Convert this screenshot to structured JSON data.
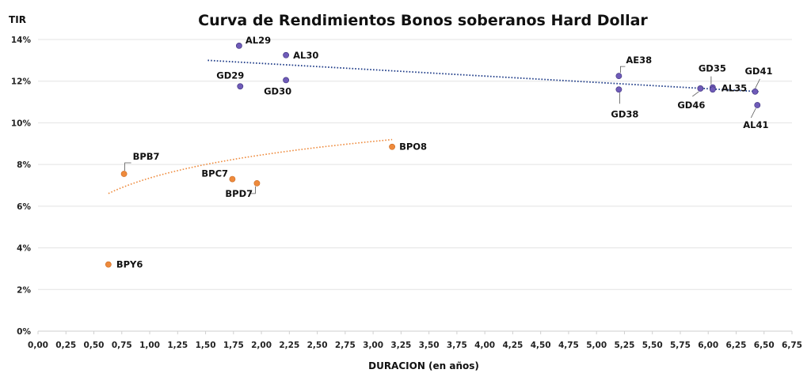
{
  "chart_data": {
    "type": "scatter",
    "title": "Curva de Rendimientos Bonos soberanos Hard Dollar",
    "xlabel": "DURACION (en años)",
    "ylabel": "TIR",
    "xlim": [
      0,
      6.75
    ],
    "ylim": [
      0,
      14
    ],
    "x_ticks": [
      "0,00",
      "0,25",
      "0,50",
      "0,75",
      "1,00",
      "1,25",
      "1,50",
      "1,75",
      "2,00",
      "2,25",
      "2,50",
      "2,75",
      "3,00",
      "3,25",
      "3,50",
      "3,75",
      "4,00",
      "4,25",
      "4,50",
      "4,75",
      "5,00",
      "5,25",
      "5,50",
      "5,75",
      "6,00",
      "6,25",
      "6,50",
      "6,75"
    ],
    "y_ticks": [
      "0%",
      "2%",
      "4%",
      "6%",
      "8%",
      "10%",
      "12%",
      "14%"
    ],
    "grid": "horizontal",
    "colors": {
      "soberanos": "#6f5bb8",
      "bopreal": "#ee8a3c",
      "trend_soberanos": "#1f3c88",
      "trend_bopreal": "#ee8a3c"
    },
    "series": [
      {
        "points": [
          {
            "label": "AL29",
            "x": 1.8,
            "y": 13.7
          },
          {
            "label": "AL30",
            "x": 2.22,
            "y": 13.25
          },
          {
            "label": "GD29",
            "x": 1.81,
            "y": 11.75
          },
          {
            "label": "GD30",
            "x": 2.22,
            "y": 12.05
          },
          {
            "label": "AE38",
            "x": 5.2,
            "y": 12.25
          },
          {
            "label": "GD38",
            "x": 5.2,
            "y": 11.6
          },
          {
            "label": "GD46",
            "x": 5.93,
            "y": 11.65
          },
          {
            "label": "GD35",
            "x": 6.04,
            "y": 11.7
          },
          {
            "label": "AL35",
            "x": 6.04,
            "y": 11.6
          },
          {
            "label": "GD41",
            "x": 6.42,
            "y": 11.5
          },
          {
            "label": "AL41",
            "x": 6.44,
            "y": 10.85
          }
        ]
      },
      {
        "points": [
          {
            "label": "BPB7",
            "x": 0.77,
            "y": 7.55
          },
          {
            "label": "BPC7",
            "x": 1.74,
            "y": 7.3
          },
          {
            "label": "BPD7",
            "x": 1.96,
            "y": 7.1
          },
          {
            "label": "BPO8",
            "x": 3.17,
            "y": 8.85
          },
          {
            "label": "BPY6",
            "x": 0.63,
            "y": 3.2
          }
        ]
      }
    ],
    "trendlines": [
      {
        "kind": "linear",
        "from": [
          1.52,
          13.0
        ],
        "to": [
          6.45,
          11.5
        ]
      },
      {
        "kind": "logarithmic",
        "x_range": [
          0.63,
          3.17
        ],
        "a": 7.35,
        "b": 1.6
      }
    ]
  }
}
